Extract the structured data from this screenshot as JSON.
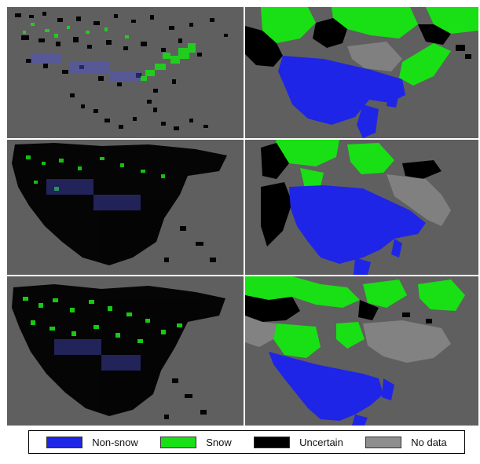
{
  "colors": {
    "non_snow": "#1f25e6",
    "snow": "#18e014",
    "uncertain": "#000000",
    "no_data": "#8e8e8e",
    "background": "#5f5f5f"
  },
  "panels": [
    {
      "row": 1,
      "column": "left",
      "description_icon": "snow-map-icon"
    },
    {
      "row": 1,
      "column": "right",
      "description_icon": "snow-map-icon"
    },
    {
      "row": 2,
      "column": "left",
      "description_icon": "snow-map-icon"
    },
    {
      "row": 2,
      "column": "right",
      "description_icon": "snow-map-icon"
    },
    {
      "row": 3,
      "column": "left",
      "description_icon": "snow-map-icon"
    },
    {
      "row": 3,
      "column": "right",
      "description_icon": "snow-map-icon"
    }
  ],
  "legend": {
    "items": [
      {
        "label": "Non-snow",
        "color": "#1f25e6"
      },
      {
        "label": "Snow",
        "color": "#18e014"
      },
      {
        "label": "Uncertain",
        "color": "#000000"
      },
      {
        "label": "No data",
        "color": "#8e8e8e"
      }
    ]
  }
}
